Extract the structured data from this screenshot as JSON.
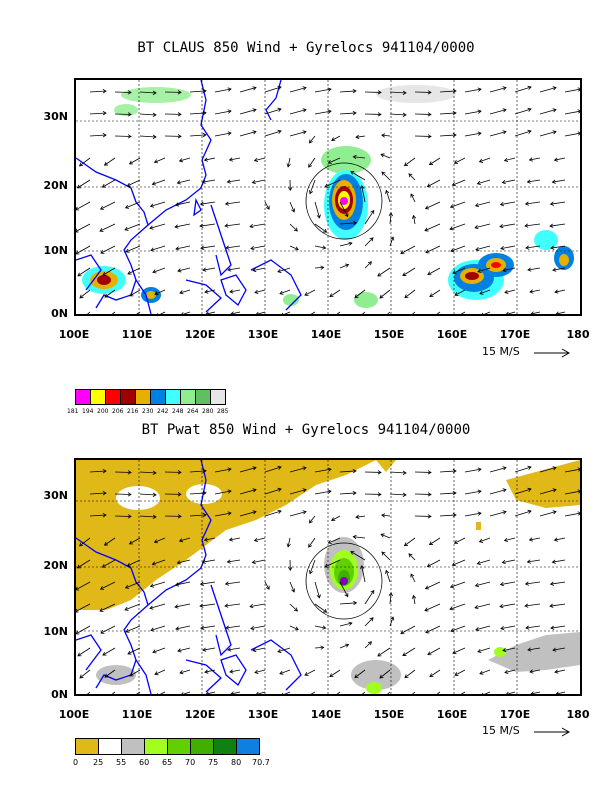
{
  "map1": {
    "title": "BT CLAUS 850 Wind + Gyrelocs 941104/0000",
    "lat_labels": [
      "30N",
      "20N",
      "10N",
      "0N"
    ],
    "lon_labels": [
      "100E",
      "110E",
      "120E",
      "130E",
      "140E",
      "150E",
      "160E",
      "170E",
      "180"
    ],
    "scale_label": "15 M/S",
    "legend": {
      "colors": [
        "#ff00ff",
        "#ffff00",
        "#ff0000",
        "#a00000",
        "#e6b000",
        "#0080e0",
        "#40ffff",
        "#90ee90",
        "#60c060",
        "#e6e6e6"
      ],
      "labels": [
        "181",
        "194",
        "200",
        "206",
        "216",
        "230",
        "242",
        "248",
        "264",
        "280",
        "285"
      ]
    }
  },
  "map2": {
    "title": "BT Pwat 850 Wind + Gyrelocs 941104/0000",
    "lat_labels": [
      "30N",
      "20N",
      "10N",
      "0N"
    ],
    "lon_labels": [
      "100E",
      "110E",
      "120E",
      "130E",
      "140E",
      "150E",
      "160E",
      "170E",
      "180"
    ],
    "scale_label": "15 M/S",
    "legend": {
      "colors": [
        "#e0b818",
        "#ffffff",
        "#c0c0c0",
        "#a0ff20",
        "#60d000",
        "#40b000",
        "#108010",
        "#1080e0",
        "#8000c0"
      ],
      "labels": [
        "0",
        "25",
        "55",
        "60",
        "65",
        "70",
        "75",
        "80",
        "70.7"
      ]
    }
  }
}
